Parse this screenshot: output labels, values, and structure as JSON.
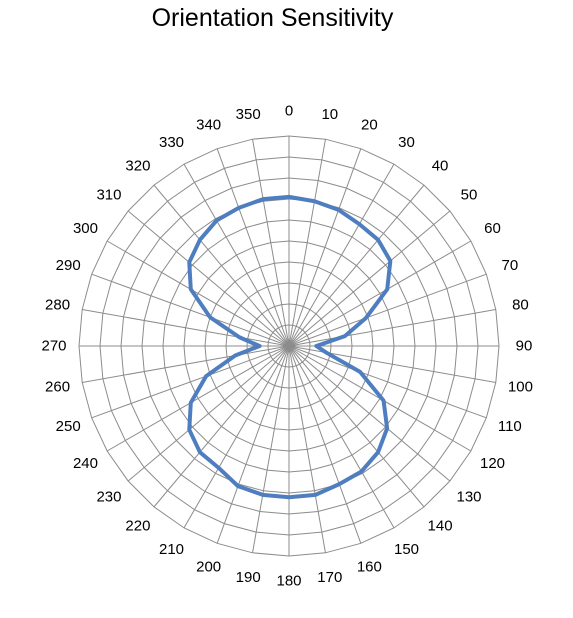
{
  "chart_data": {
    "type": "radar",
    "title": "Orientation Sensitivity",
    "categories": [
      "0",
      "10",
      "20",
      "30",
      "40",
      "50",
      "60",
      "70",
      "80",
      "90",
      "100",
      "110",
      "120",
      "130",
      "140",
      "150",
      "160",
      "170",
      "180",
      "190",
      "200",
      "210",
      "220",
      "230",
      "240",
      "250",
      "260",
      "270",
      "280",
      "290",
      "300",
      "310",
      "320",
      "330",
      "340",
      "350"
    ],
    "series": [
      {
        "values": [
          0.71,
          0.7,
          0.69,
          0.67,
          0.66,
          0.63,
          0.54,
          0.39,
          0.27,
          0.13,
          0.18,
          0.36,
          0.52,
          0.61,
          0.66,
          0.69,
          0.7,
          0.72,
          0.72,
          0.72,
          0.71,
          0.67,
          0.66,
          0.62,
          0.54,
          0.42,
          0.26,
          0.14,
          0.24,
          0.4,
          0.54,
          0.62,
          0.66,
          0.69,
          0.7,
          0.71
        ],
        "color": "#4f7ec0"
      }
    ],
    "radial_range": [
      0,
      1
    ],
    "rings": 10,
    "spokes": 36,
    "grid": true,
    "legend": "none"
  }
}
